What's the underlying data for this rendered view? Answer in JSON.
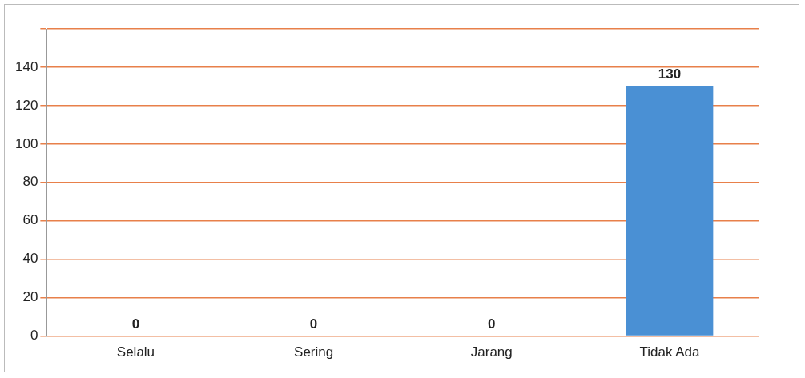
{
  "chart_data": {
    "type": "bar",
    "categories": [
      "Selalu",
      "Sering",
      "Jarang",
      "Tidak Ada"
    ],
    "values": [
      0,
      0,
      0,
      130
    ],
    "color": "#4a90d4",
    "ylim": [
      0,
      160
    ],
    "yticks": [
      0,
      20,
      40,
      60,
      80,
      100,
      120,
      140,
      {
        "value": 160,
        "label": null
      }
    ],
    "grid": "y",
    "data_labels": true,
    "legend": false
  }
}
